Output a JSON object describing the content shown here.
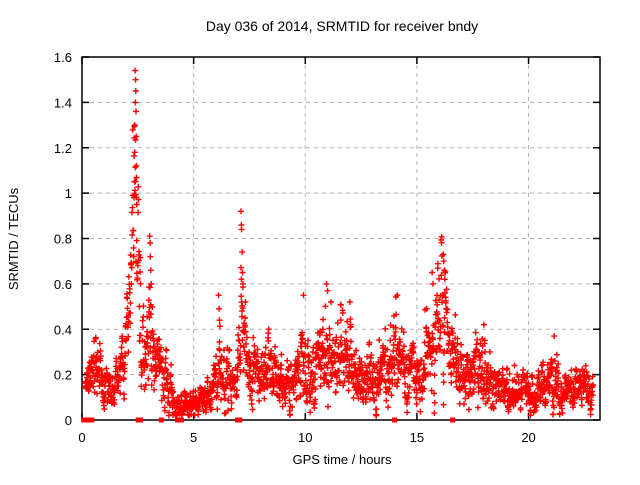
{
  "window": {
    "background": "#ffffff"
  },
  "chart_data": {
    "type": "scatter",
    "title": "Day 036 of 2014, SRMTID for receiver bndy",
    "xlabel": "GPS time / hours",
    "ylabel": "SRMTID / TECUs",
    "xlim": [
      0,
      23.2
    ],
    "ylim": [
      0,
      1.6
    ],
    "xticks": [
      0,
      5,
      10,
      15,
      20
    ],
    "xtick_labels": [
      "0",
      "5",
      "10",
      "15",
      "20"
    ],
    "yticks": [
      0,
      0.2,
      0.4,
      0.6,
      0.8,
      1.0,
      1.2,
      1.4,
      1.6
    ],
    "ytick_labels": [
      "0",
      "0.2",
      "0.4",
      "0.6",
      "0.8",
      "1",
      "1.2",
      "1.4",
      "1.6"
    ],
    "grid": {
      "visible": true,
      "style": "dashed",
      "color": "#b0b0b0"
    },
    "legend": "none",
    "marker": {
      "shape": "plus",
      "color": "#ff0000",
      "size": 7,
      "stroke_width": 1.4
    },
    "zero_marker": {
      "shape": "filled-square",
      "color": "#ff0000",
      "size": 5
    },
    "peak_point": {
      "t": 2.38,
      "value": 1.54
    },
    "sample_step_hours": 0.01,
    "trange": [
      0.15,
      22.9
    ],
    "seed": 2014036,
    "series_profile": [
      [
        0.15,
        0.16,
        0.05
      ],
      [
        0.45,
        0.2,
        0.07
      ],
      [
        0.7,
        0.23,
        0.08
      ],
      [
        1.0,
        0.15,
        0.05
      ],
      [
        1.3,
        0.14,
        0.05
      ],
      [
        1.6,
        0.22,
        0.07
      ],
      [
        1.9,
        0.3,
        0.09
      ],
      [
        2.1,
        0.5,
        0.13
      ],
      [
        2.25,
        0.85,
        0.25
      ],
      [
        2.38,
        1.22,
        0.28
      ],
      [
        2.5,
        0.78,
        0.2
      ],
      [
        2.65,
        0.38,
        0.12
      ],
      [
        2.85,
        0.24,
        0.09
      ],
      [
        3.0,
        0.5,
        0.2
      ],
      [
        3.12,
        0.42,
        0.16
      ],
      [
        3.3,
        0.28,
        0.1
      ],
      [
        3.55,
        0.22,
        0.09
      ],
      [
        3.85,
        0.14,
        0.07
      ],
      [
        4.2,
        0.1,
        0.05
      ],
      [
        4.6,
        0.06,
        0.035
      ],
      [
        5.1,
        0.06,
        0.035
      ],
      [
        5.6,
        0.09,
        0.05
      ],
      [
        5.95,
        0.13,
        0.07
      ],
      [
        6.15,
        0.25,
        0.13
      ],
      [
        6.4,
        0.14,
        0.08
      ],
      [
        6.8,
        0.13,
        0.07
      ],
      [
        7.1,
        0.42,
        0.2
      ],
      [
        7.3,
        0.28,
        0.1
      ],
      [
        7.6,
        0.2,
        0.08
      ],
      [
        8.0,
        0.22,
        0.09
      ],
      [
        8.35,
        0.27,
        0.1
      ],
      [
        8.8,
        0.18,
        0.07
      ],
      [
        9.3,
        0.17,
        0.07
      ],
      [
        9.9,
        0.27,
        0.12
      ],
      [
        10.3,
        0.2,
        0.09
      ],
      [
        10.9,
        0.32,
        0.14
      ],
      [
        11.3,
        0.27,
        0.12
      ],
      [
        12.0,
        0.28,
        0.12
      ],
      [
        12.5,
        0.18,
        0.09
      ],
      [
        13.1,
        0.17,
        0.08
      ],
      [
        13.45,
        0.22,
        0.1
      ],
      [
        14.1,
        0.28,
        0.13
      ],
      [
        14.6,
        0.23,
        0.1
      ],
      [
        15.2,
        0.2,
        0.1
      ],
      [
        15.7,
        0.3,
        0.14
      ],
      [
        16.15,
        0.4,
        0.18
      ],
      [
        16.6,
        0.22,
        0.1
      ],
      [
        17.2,
        0.16,
        0.07
      ],
      [
        18.0,
        0.2,
        0.09
      ],
      [
        18.6,
        0.14,
        0.06
      ],
      [
        19.5,
        0.13,
        0.05
      ],
      [
        20.4,
        0.14,
        0.06
      ],
      [
        21.1,
        0.17,
        0.08
      ],
      [
        21.8,
        0.13,
        0.05
      ],
      [
        22.4,
        0.13,
        0.06
      ],
      [
        22.9,
        0.15,
        0.06
      ]
    ],
    "feature_points": [
      [
        2.33,
        0.98
      ],
      [
        2.35,
        1.05
      ],
      [
        2.36,
        1.18
      ],
      [
        2.37,
        1.3
      ],
      [
        2.38,
        1.54
      ],
      [
        2.39,
        1.4
      ],
      [
        2.4,
        1.5
      ],
      [
        2.41,
        1.45
      ],
      [
        2.42,
        1.36
      ],
      [
        2.43,
        1.25
      ],
      [
        2.44,
        1.12
      ],
      [
        2.45,
        0.95
      ],
      [
        3.03,
        0.81
      ],
      [
        3.05,
        0.78
      ],
      [
        3.06,
        0.72
      ],
      [
        3.08,
        0.66
      ],
      [
        3.1,
        0.6
      ],
      [
        6.12,
        0.55
      ],
      [
        6.14,
        0.49
      ],
      [
        6.16,
        0.44
      ],
      [
        7.12,
        0.92
      ],
      [
        7.14,
        0.86
      ],
      [
        7.15,
        0.84
      ],
      [
        7.17,
        0.74
      ],
      [
        7.19,
        0.65
      ],
      [
        7.21,
        0.6
      ],
      [
        9.92,
        0.55
      ],
      [
        10.95,
        0.6
      ],
      [
        11.0,
        0.57
      ],
      [
        11.15,
        0.52
      ],
      [
        12.0,
        0.52
      ],
      [
        14.12,
        0.55
      ],
      [
        15.68,
        0.65
      ],
      [
        15.72,
        0.6
      ],
      [
        16.18,
        0.73
      ],
      [
        16.2,
        0.7
      ],
      [
        16.22,
        0.66
      ],
      [
        16.25,
        0.62
      ],
      [
        18.0,
        0.42
      ],
      [
        21.15,
        0.37
      ]
    ],
    "zero_points": [
      0.08,
      0.17,
      0.26,
      0.35,
      0.44,
      2.52,
      2.62,
      3.55,
      4.28,
      4.45,
      6.97,
      7.07,
      14.0,
      16.6
    ]
  }
}
